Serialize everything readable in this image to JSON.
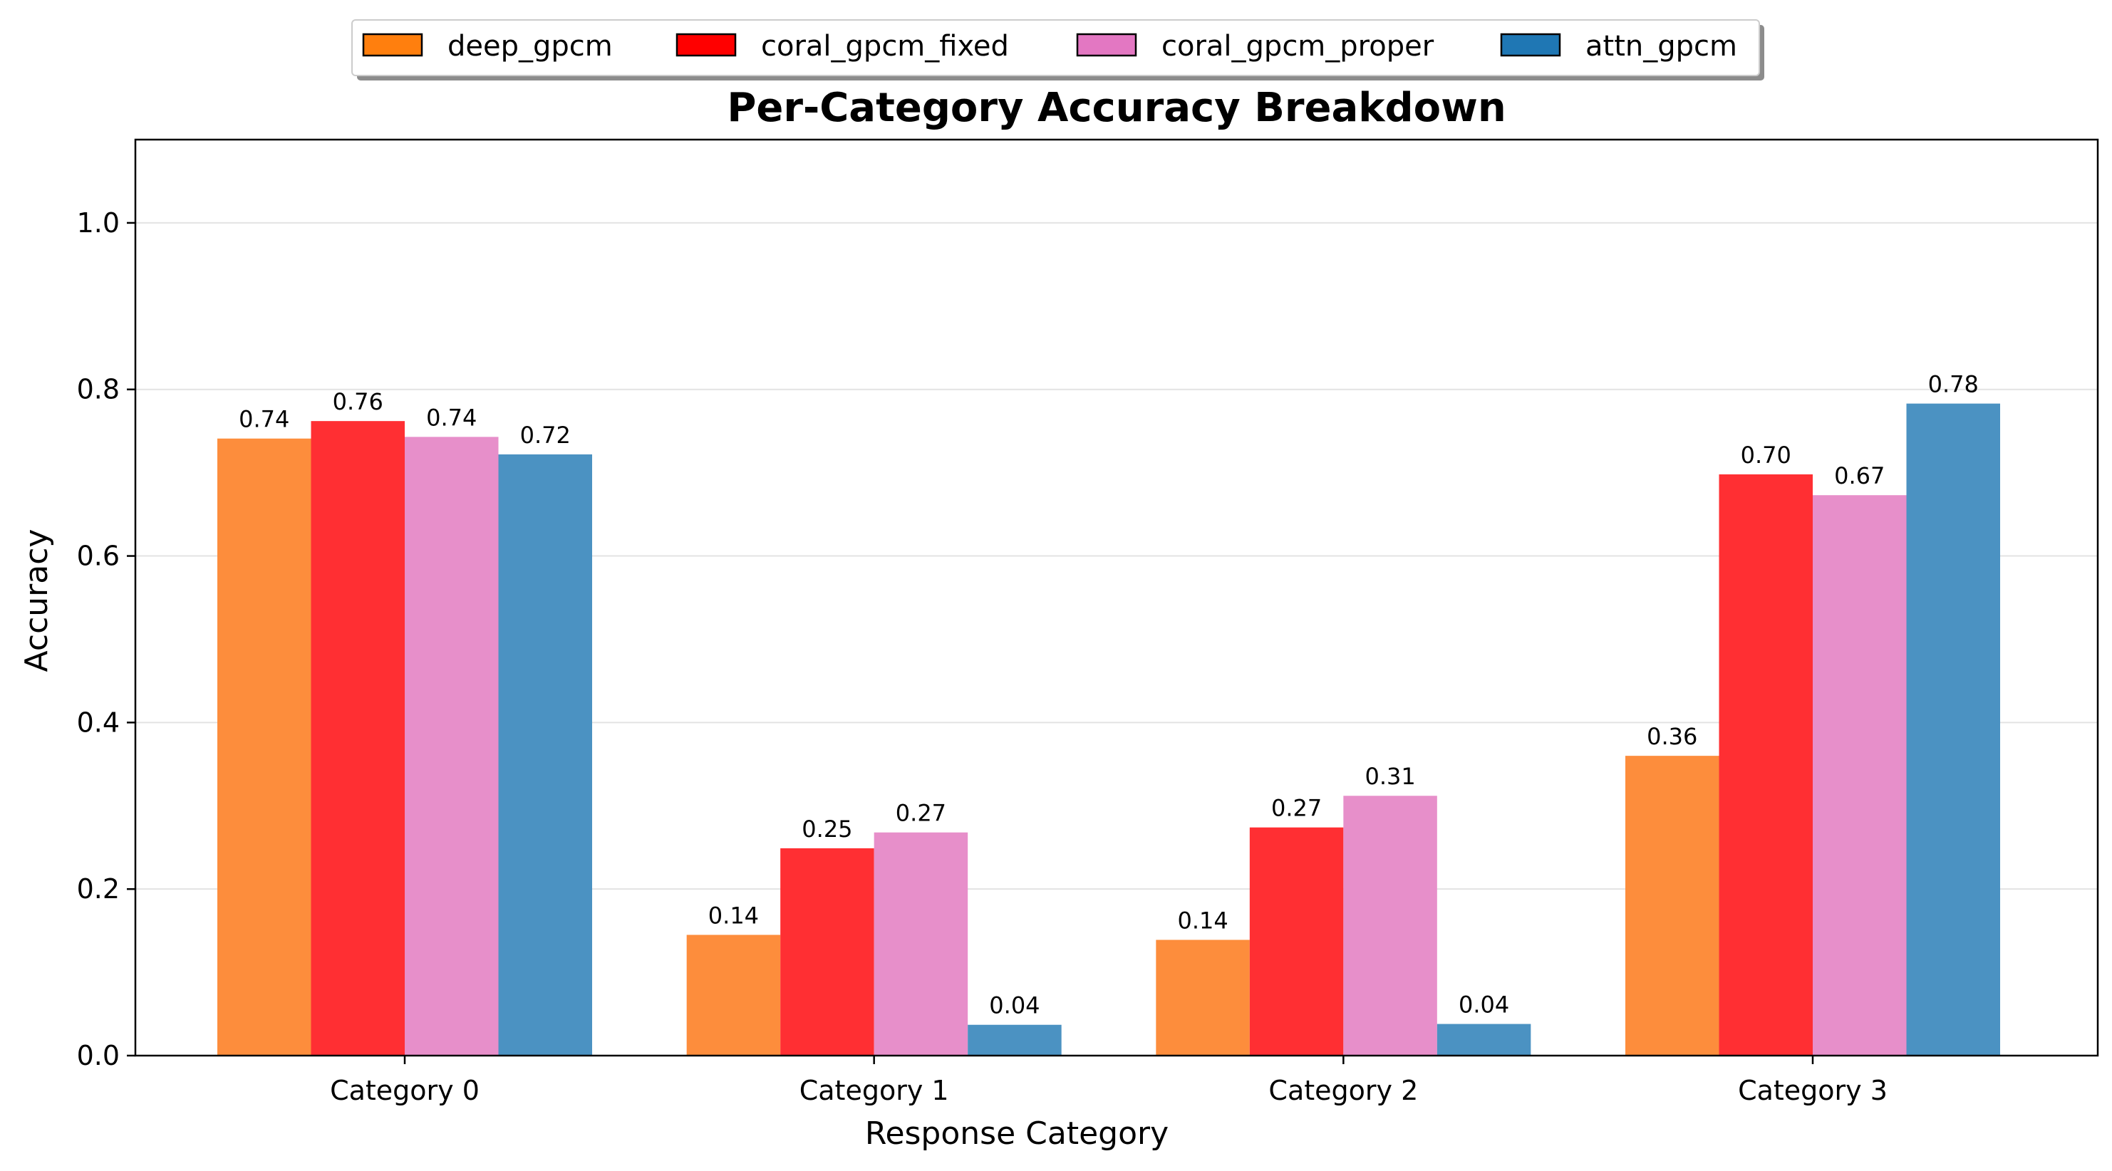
{
  "chart_data": {
    "type": "bar",
    "title": "Per-Category Accuracy Breakdown",
    "xlabel": "Response Category",
    "ylabel": "Accuracy",
    "categories": [
      "Category 0",
      "Category 1",
      "Category 2",
      "Category 3"
    ],
    "ylim": [
      0,
      1.1
    ],
    "yticks": [
      "0.0",
      "0.2",
      "0.4",
      "0.6",
      "0.8",
      "1.0"
    ],
    "grid": "horizontal",
    "legend_position": "top-center",
    "series": [
      {
        "name": "deep_gpcm",
        "color": "#fd8d3c",
        "legend_color": "#ff7f0e",
        "values": [
          0.741,
          0.145,
          0.139,
          0.36
        ],
        "labels": [
          "0.74",
          "0.14",
          "0.14",
          "0.36"
        ]
      },
      {
        "name": "coral_gpcm_fixed",
        "color": "#ff2f33",
        "legend_color": "#ff0000",
        "values": [
          0.762,
          0.249,
          0.274,
          0.698
        ],
        "labels": [
          "0.76",
          "0.25",
          "0.27",
          "0.70"
        ]
      },
      {
        "name": "coral_gpcm_proper",
        "color": "#e78fca",
        "legend_color": "#e377c2",
        "values": [
          0.743,
          0.268,
          0.312,
          0.673
        ],
        "labels": [
          "0.74",
          "0.27",
          "0.31",
          "0.67"
        ]
      },
      {
        "name": "attn_gpcm",
        "color": "#4b92c2",
        "legend_color": "#1f77b4",
        "values": [
          0.722,
          0.037,
          0.038,
          0.783
        ],
        "labels": [
          "0.72",
          "0.04",
          "0.04",
          "0.78"
        ]
      }
    ]
  }
}
